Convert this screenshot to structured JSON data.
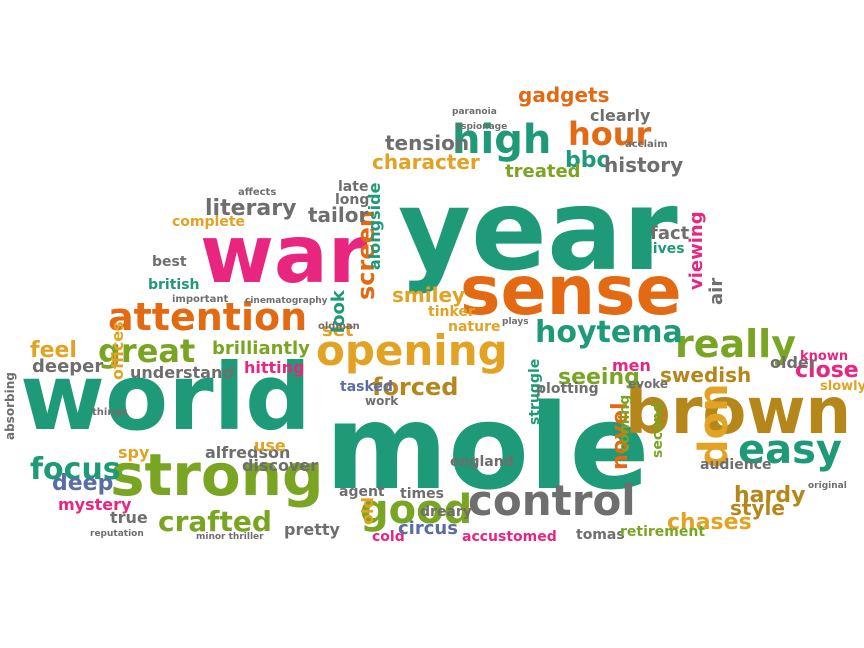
{
  "palette": {
    "green": "#1f9a78",
    "pink": "#e8257f",
    "orange": "#e36a12",
    "olive": "#7aa523",
    "gold": "#e2a324",
    "brown": "#b5861a",
    "gray": "#6e6e6e",
    "slate": "#5a6ea5",
    "teal": "#3a8a8a",
    "rust": "#d1561b"
  },
  "words": [
    {
      "text": "year",
      "color": "green"
    },
    {
      "text": "mole",
      "color": "green"
    },
    {
      "text": "world",
      "color": "green"
    },
    {
      "text": "war",
      "color": "pink"
    },
    {
      "text": "sense",
      "color": "orange"
    },
    {
      "text": "brown",
      "color": "brown"
    },
    {
      "text": "strong",
      "color": "olive"
    },
    {
      "text": "opening",
      "color": "gold"
    },
    {
      "text": "control",
      "color": "gray"
    },
    {
      "text": "attention",
      "color": "orange"
    },
    {
      "text": "really",
      "color": "olive"
    },
    {
      "text": "easy",
      "color": "green"
    },
    {
      "text": "good",
      "color": "olive"
    },
    {
      "text": "high",
      "color": "green"
    },
    {
      "text": "hour",
      "color": "orange"
    },
    {
      "text": "hoytema",
      "color": "green"
    },
    {
      "text": "great",
      "color": "olive"
    },
    {
      "text": "crafted",
      "color": "olive"
    },
    {
      "text": "focus",
      "color": "green"
    },
    {
      "text": "forced",
      "color": "brown"
    },
    {
      "text": "screen",
      "color": "orange"
    },
    {
      "text": "don",
      "color": "gold"
    },
    {
      "text": "seeing",
      "color": "olive"
    },
    {
      "text": "swedish",
      "color": "brown"
    },
    {
      "text": "novel",
      "color": "orange"
    },
    {
      "text": "feel",
      "color": "gold"
    },
    {
      "text": "deep",
      "color": "slate"
    },
    {
      "text": "smiley",
      "color": "gold"
    },
    {
      "text": "literary",
      "color": "gray"
    },
    {
      "text": "character",
      "color": "gold"
    },
    {
      "text": "tension",
      "color": "gray"
    },
    {
      "text": "bbc",
      "color": "green"
    },
    {
      "text": "history",
      "color": "gray"
    },
    {
      "text": "gadgets",
      "color": "orange"
    },
    {
      "text": "clearly",
      "color": "gray"
    },
    {
      "text": "treated",
      "color": "olive"
    },
    {
      "text": "tailor",
      "color": "gray"
    },
    {
      "text": "alongside",
      "color": "green"
    },
    {
      "text": "viewing",
      "color": "pink"
    },
    {
      "text": "fact",
      "color": "gray"
    },
    {
      "text": "close",
      "color": "pink"
    },
    {
      "text": "hardy",
      "color": "brown"
    },
    {
      "text": "chases",
      "color": "gold"
    },
    {
      "text": "style",
      "color": "brown"
    },
    {
      "text": "older",
      "color": "gray"
    },
    {
      "text": "brilliantly",
      "color": "olive"
    },
    {
      "text": "offices",
      "color": "gold"
    },
    {
      "text": "deeper",
      "color": "gray"
    },
    {
      "text": "understand",
      "color": "gray"
    },
    {
      "text": "hitting",
      "color": "pink"
    },
    {
      "text": "spy",
      "color": "gold"
    },
    {
      "text": "alfredson",
      "color": "gray"
    },
    {
      "text": "discover",
      "color": "gray"
    },
    {
      "text": "use",
      "color": "gold"
    },
    {
      "text": "true",
      "color": "gray"
    },
    {
      "text": "mystery",
      "color": "pink"
    },
    {
      "text": "pretty",
      "color": "gray"
    },
    {
      "text": "old",
      "color": "gold"
    },
    {
      "text": "cold",
      "color": "pink"
    },
    {
      "text": "circus",
      "color": "slate"
    },
    {
      "text": "accustomed",
      "color": "pink"
    },
    {
      "text": "tomas",
      "color": "gray"
    },
    {
      "text": "retirement",
      "color": "olive"
    },
    {
      "text": "dreary",
      "color": "gray"
    },
    {
      "text": "times",
      "color": "gray"
    },
    {
      "text": "agent",
      "color": "gray"
    },
    {
      "text": "england",
      "color": "gray"
    },
    {
      "text": "struggle",
      "color": "green"
    },
    {
      "text": "coming",
      "color": "olive"
    },
    {
      "text": "second",
      "color": "olive"
    },
    {
      "text": "audience",
      "color": "gray"
    },
    {
      "text": "set",
      "color": "gold"
    },
    {
      "text": "look",
      "color": "green"
    },
    {
      "text": "air",
      "color": "gray"
    },
    {
      "text": "men",
      "color": "pink"
    },
    {
      "text": "plotting",
      "color": "gray"
    },
    {
      "text": "tasked",
      "color": "slate"
    },
    {
      "text": "complete",
      "color": "gold"
    },
    {
      "text": "best",
      "color": "gray"
    },
    {
      "text": "british",
      "color": "green"
    },
    {
      "text": "late",
      "color": "gray"
    },
    {
      "text": "long",
      "color": "gray"
    },
    {
      "text": "nature",
      "color": "gold"
    },
    {
      "text": "tinker",
      "color": "gold"
    },
    {
      "text": "lives",
      "color": "green"
    },
    {
      "text": "known",
      "color": "pink"
    },
    {
      "text": "slowly",
      "color": "gold"
    },
    {
      "text": "absorbing",
      "color": "gray"
    },
    {
      "text": "evoke",
      "color": "gray"
    },
    {
      "text": "work",
      "color": "gray"
    },
    {
      "text": "things",
      "color": "gray"
    },
    {
      "text": "affects",
      "color": "gray"
    },
    {
      "text": "paranoia",
      "color": "gray"
    },
    {
      "text": "espionage",
      "color": "gray"
    },
    {
      "text": "acclaim",
      "color": "gray"
    },
    {
      "text": "important",
      "color": "gray"
    },
    {
      "text": "cinematography",
      "color": "gray"
    },
    {
      "text": "oldman",
      "color": "gray"
    },
    {
      "text": "plays",
      "color": "gray"
    },
    {
      "text": "original",
      "color": "gray"
    },
    {
      "text": "minor thriller",
      "color": "gray"
    },
    {
      "text": "reputation",
      "color": "gray"
    }
  ]
}
